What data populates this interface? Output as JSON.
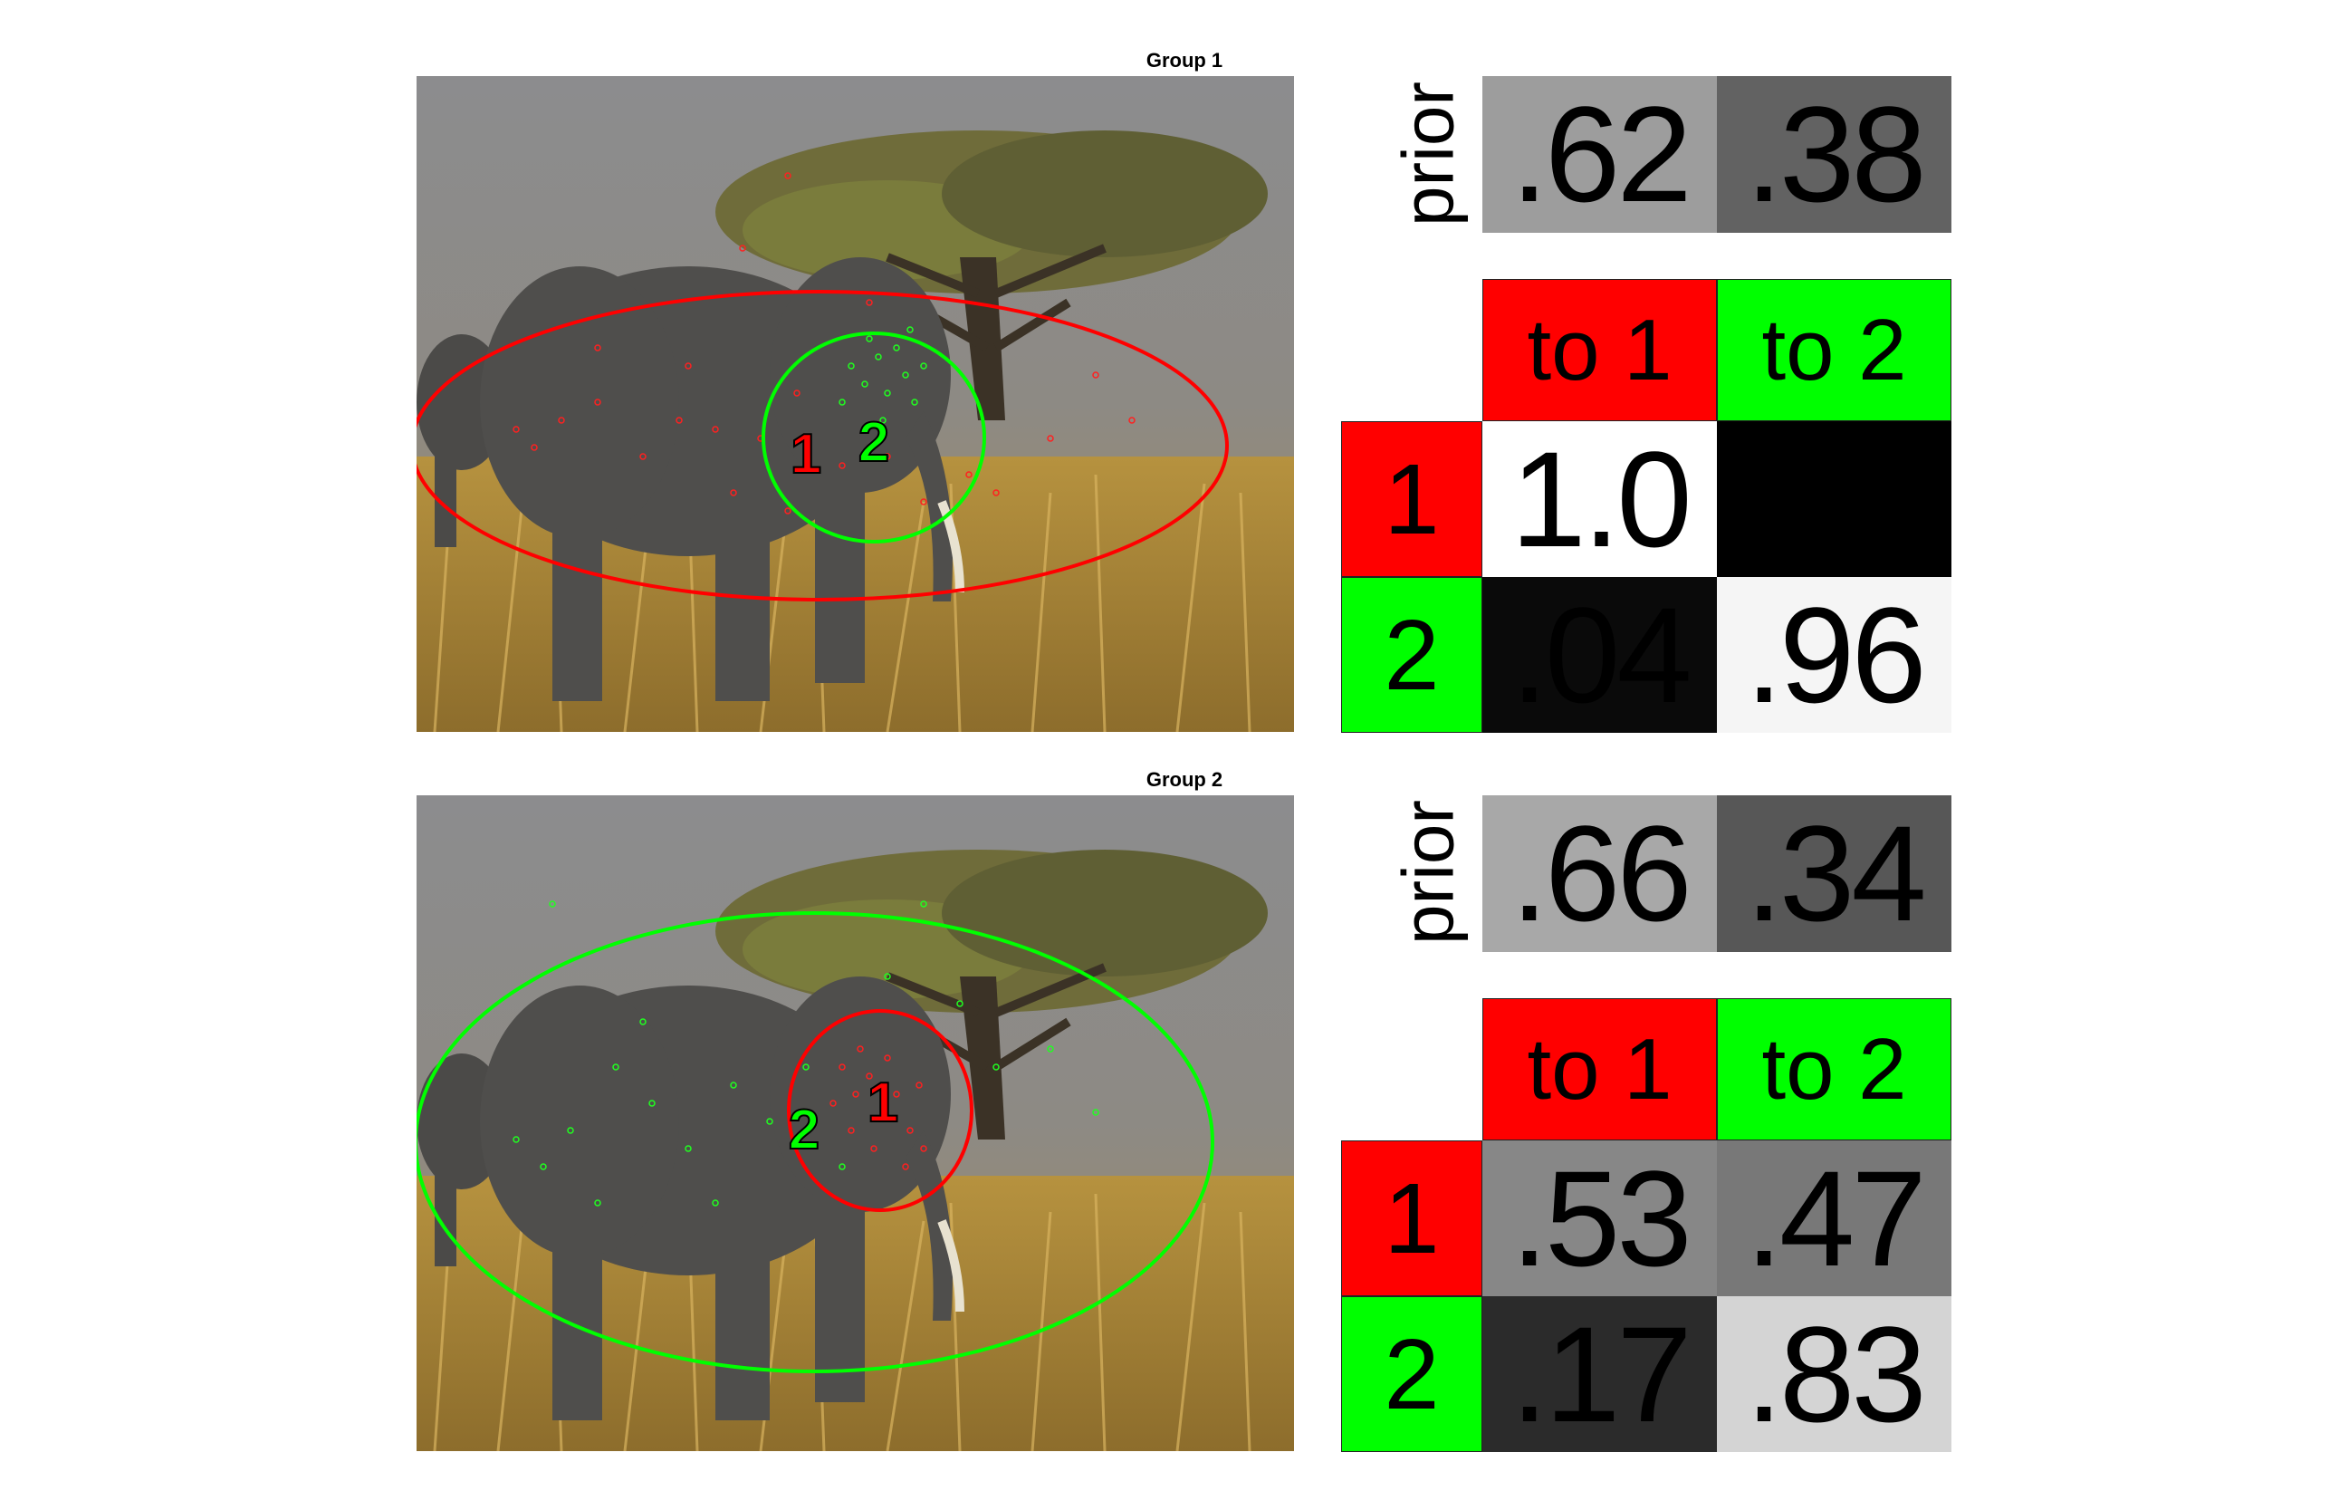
{
  "groups": [
    {
      "title": "Group 1",
      "prior": {
        "label": "prior",
        "values": [
          ".62",
          ".38"
        ],
        "shades": [
          "#9d9d9d",
          "#626262"
        ]
      },
      "transition": {
        "col_headers": [
          "to 1",
          "to 2"
        ],
        "row_headers": [
          "1",
          "2"
        ],
        "values": [
          [
            "1.0",
            ""
          ],
          [
            ".04",
            ".96"
          ]
        ],
        "shades": [
          [
            "#ffffff",
            "#000000"
          ],
          [
            "#0a0a0a",
            "#f5f5f5"
          ]
        ]
      },
      "scene": {
        "cluster_labels": [
          "1",
          "2"
        ],
        "cluster_colors": [
          "#ff0000",
          "#00ff00"
        ]
      }
    },
    {
      "title": "Group 2",
      "prior": {
        "label": "prior",
        "values": [
          ".66",
          ".34"
        ],
        "shades": [
          "#a8a8a8",
          "#575757"
        ]
      },
      "transition": {
        "col_headers": [
          "to 1",
          "to 2"
        ],
        "row_headers": [
          "1",
          "2"
        ],
        "values": [
          [
            ".53",
            ".47"
          ],
          [
            ".17",
            ".83"
          ]
        ],
        "shades": [
          [
            "#878787",
            "#787878"
          ],
          [
            "#2b2b2b",
            "#d4d4d4"
          ]
        ]
      },
      "scene": {
        "cluster_labels": [
          "1",
          "2"
        ],
        "cluster_colors": [
          "#ff0000",
          "#00ff00"
        ]
      }
    }
  ],
  "colors": {
    "state1": "#ff0000",
    "state2": "#00ff00"
  }
}
